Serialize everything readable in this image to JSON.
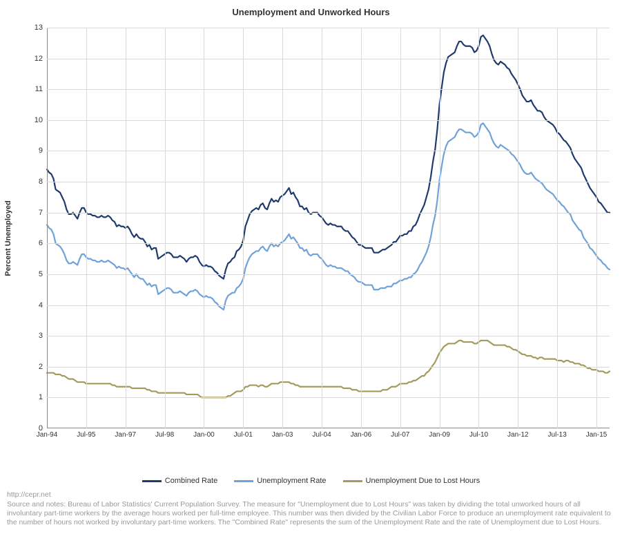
{
  "chart": {
    "type": "line",
    "title": "Unemployment and Unworked Hours",
    "title_fontsize": 13,
    "background_color": "#ffffff",
    "grid_color": "#d9d9d9",
    "axis_color": "#888888",
    "text_color": "#333333",
    "line_width": 2.2,
    "y_axis": {
      "label": "Percent Unemployed",
      "min": 0,
      "max": 13,
      "tick_step": 1,
      "ticks": [
        0,
        1,
        2,
        3,
        4,
        5,
        6,
        7,
        8,
        9,
        10,
        11,
        12,
        13
      ]
    },
    "x_axis": {
      "start": "1994-01",
      "end": "2015-07",
      "tick_labels": [
        "Jan-94",
        "Jul-95",
        "Jan-97",
        "Jul-98",
        "Jan-00",
        "Jul-01",
        "Jan-03",
        "Jul-04",
        "Jan-06",
        "Jul-07",
        "Jan-09",
        "Jul-10",
        "Jan-12",
        "Jul-13",
        "Jan-15"
      ],
      "tick_indices": [
        0,
        18,
        36,
        54,
        72,
        90,
        108,
        126,
        144,
        162,
        180,
        198,
        216,
        234,
        252
      ],
      "n_points": 259
    },
    "series": [
      {
        "name": "Combined Rate",
        "color": "#1f3a6e",
        "values": [
          8.4,
          8.3,
          8.25,
          8.1,
          7.75,
          7.7,
          7.65,
          7.5,
          7.35,
          7.1,
          6.95,
          6.95,
          7.0,
          6.9,
          6.8,
          7.0,
          7.15,
          7.15,
          7.0,
          6.95,
          6.95,
          6.9,
          6.9,
          6.85,
          6.85,
          6.9,
          6.85,
          6.85,
          6.9,
          6.85,
          6.75,
          6.7,
          6.55,
          6.6,
          6.55,
          6.55,
          6.5,
          6.55,
          6.45,
          6.3,
          6.2,
          6.3,
          6.2,
          6.15,
          6.15,
          6.05,
          5.9,
          5.95,
          5.8,
          5.85,
          5.85,
          5.5,
          5.55,
          5.6,
          5.65,
          5.7,
          5.7,
          5.65,
          5.55,
          5.55,
          5.55,
          5.6,
          5.55,
          5.5,
          5.4,
          5.5,
          5.55,
          5.55,
          5.6,
          5.55,
          5.4,
          5.3,
          5.25,
          5.3,
          5.25,
          5.25,
          5.2,
          5.1,
          5.05,
          4.95,
          4.9,
          4.85,
          5.15,
          5.35,
          5.4,
          5.5,
          5.55,
          5.75,
          5.8,
          5.9,
          6.1,
          6.55,
          6.75,
          6.95,
          7.05,
          7.1,
          7.15,
          7.1,
          7.25,
          7.3,
          7.15,
          7.1,
          7.3,
          7.45,
          7.35,
          7.4,
          7.35,
          7.5,
          7.55,
          7.6,
          7.7,
          7.8,
          7.6,
          7.65,
          7.5,
          7.4,
          7.2,
          7.2,
          7.1,
          7.15,
          7.0,
          6.95,
          7.0,
          7.0,
          7.0,
          6.9,
          6.85,
          6.75,
          6.65,
          6.6,
          6.65,
          6.6,
          6.6,
          6.55,
          6.55,
          6.55,
          6.45,
          6.4,
          6.4,
          6.3,
          6.2,
          6.15,
          6.05,
          5.95,
          5.95,
          5.9,
          5.85,
          5.85,
          5.85,
          5.85,
          5.7,
          5.7,
          5.7,
          5.75,
          5.8,
          5.8,
          5.85,
          5.9,
          5.95,
          6.05,
          6.05,
          6.15,
          6.25,
          6.25,
          6.3,
          6.3,
          6.4,
          6.4,
          6.55,
          6.6,
          6.75,
          6.95,
          7.1,
          7.25,
          7.5,
          7.75,
          8.15,
          8.65,
          9.05,
          9.7,
          10.5,
          11.05,
          11.55,
          11.85,
          12.05,
          12.1,
          12.15,
          12.2,
          12.4,
          12.55,
          12.55,
          12.45,
          12.4,
          12.4,
          12.4,
          12.35,
          12.2,
          12.25,
          12.4,
          12.7,
          12.75,
          12.65,
          12.55,
          12.4,
          12.15,
          11.95,
          11.85,
          11.8,
          11.9,
          11.85,
          11.8,
          11.7,
          11.65,
          11.5,
          11.4,
          11.3,
          11.15,
          11.0,
          10.8,
          10.7,
          10.6,
          10.6,
          10.65,
          10.5,
          10.4,
          10.3,
          10.3,
          10.25,
          10.1,
          10.0,
          9.95,
          9.9,
          9.85,
          9.75,
          9.6,
          9.55,
          9.45,
          9.35,
          9.3,
          9.2,
          9.1,
          8.9,
          8.75,
          8.65,
          8.55,
          8.45,
          8.25,
          8.1,
          7.95,
          7.8,
          7.7,
          7.6,
          7.5,
          7.35,
          7.3,
          7.2,
          7.1,
          7.0,
          7.0
        ]
      },
      {
        "name": "Unemployment Rate",
        "color": "#6fa2d8",
        "values": [
          6.6,
          6.5,
          6.45,
          6.3,
          6.0,
          5.95,
          5.9,
          5.8,
          5.65,
          5.45,
          5.35,
          5.35,
          5.4,
          5.35,
          5.3,
          5.5,
          5.65,
          5.65,
          5.55,
          5.5,
          5.5,
          5.45,
          5.45,
          5.4,
          5.4,
          5.45,
          5.4,
          5.4,
          5.45,
          5.4,
          5.35,
          5.3,
          5.2,
          5.25,
          5.2,
          5.2,
          5.15,
          5.2,
          5.1,
          5.0,
          4.9,
          5.0,
          4.9,
          4.85,
          4.85,
          4.75,
          4.65,
          4.7,
          4.6,
          4.65,
          4.65,
          4.35,
          4.4,
          4.45,
          4.5,
          4.55,
          4.55,
          4.5,
          4.4,
          4.4,
          4.4,
          4.45,
          4.4,
          4.35,
          4.3,
          4.4,
          4.45,
          4.45,
          4.5,
          4.45,
          4.35,
          4.3,
          4.25,
          4.3,
          4.25,
          4.25,
          4.2,
          4.1,
          4.05,
          3.95,
          3.9,
          3.85,
          4.15,
          4.3,
          4.35,
          4.4,
          4.4,
          4.55,
          4.6,
          4.7,
          4.85,
          5.2,
          5.4,
          5.55,
          5.65,
          5.7,
          5.75,
          5.75,
          5.85,
          5.9,
          5.8,
          5.75,
          5.9,
          6.0,
          5.9,
          5.95,
          5.9,
          6.0,
          6.05,
          6.1,
          6.2,
          6.3,
          6.15,
          6.2,
          6.1,
          6.0,
          5.85,
          5.85,
          5.75,
          5.8,
          5.65,
          5.6,
          5.65,
          5.65,
          5.65,
          5.55,
          5.5,
          5.4,
          5.3,
          5.25,
          5.3,
          5.25,
          5.25,
          5.2,
          5.2,
          5.2,
          5.15,
          5.1,
          5.1,
          5.0,
          4.95,
          4.9,
          4.8,
          4.75,
          4.75,
          4.7,
          4.65,
          4.65,
          4.65,
          4.65,
          4.5,
          4.5,
          4.5,
          4.55,
          4.55,
          4.55,
          4.6,
          4.6,
          4.6,
          4.7,
          4.7,
          4.75,
          4.8,
          4.8,
          4.85,
          4.85,
          4.9,
          4.9,
          5.0,
          5.05,
          5.15,
          5.3,
          5.4,
          5.55,
          5.7,
          5.9,
          6.2,
          6.6,
          6.9,
          7.4,
          8.05,
          8.5,
          8.9,
          9.15,
          9.3,
          9.35,
          9.4,
          9.45,
          9.6,
          9.7,
          9.7,
          9.65,
          9.6,
          9.6,
          9.6,
          9.55,
          9.45,
          9.5,
          9.6,
          9.85,
          9.9,
          9.8,
          9.7,
          9.6,
          9.4,
          9.25,
          9.15,
          9.1,
          9.2,
          9.15,
          9.1,
          9.05,
          9.0,
          8.9,
          8.85,
          8.75,
          8.65,
          8.55,
          8.4,
          8.3,
          8.25,
          8.25,
          8.3,
          8.2,
          8.1,
          8.05,
          8.0,
          7.95,
          7.85,
          7.75,
          7.7,
          7.65,
          7.6,
          7.5,
          7.4,
          7.35,
          7.25,
          7.2,
          7.1,
          7.0,
          6.95,
          6.75,
          6.65,
          6.55,
          6.45,
          6.4,
          6.2,
          6.1,
          6.0,
          5.85,
          5.8,
          5.7,
          5.6,
          5.5,
          5.45,
          5.35,
          5.3,
          5.2,
          5.15
        ]
      },
      {
        "name": "Unemployment Due to Lost Hours",
        "color": "#a39a5b",
        "values": [
          1.8,
          1.8,
          1.8,
          1.8,
          1.75,
          1.75,
          1.75,
          1.7,
          1.7,
          1.65,
          1.6,
          1.6,
          1.6,
          1.55,
          1.5,
          1.5,
          1.5,
          1.5,
          1.45,
          1.45,
          1.45,
          1.45,
          1.45,
          1.45,
          1.45,
          1.45,
          1.45,
          1.45,
          1.45,
          1.45,
          1.4,
          1.4,
          1.35,
          1.35,
          1.35,
          1.35,
          1.35,
          1.35,
          1.35,
          1.3,
          1.3,
          1.3,
          1.3,
          1.3,
          1.3,
          1.3,
          1.25,
          1.25,
          1.2,
          1.2,
          1.2,
          1.15,
          1.15,
          1.15,
          1.15,
          1.15,
          1.15,
          1.15,
          1.15,
          1.15,
          1.15,
          1.15,
          1.15,
          1.15,
          1.1,
          1.1,
          1.1,
          1.1,
          1.1,
          1.1,
          1.05,
          1.0,
          1.0,
          1.0,
          1.0,
          1.0,
          1.0,
          1.0,
          1.0,
          1.0,
          1.0,
          1.0,
          1.0,
          1.05,
          1.05,
          1.1,
          1.15,
          1.2,
          1.2,
          1.2,
          1.25,
          1.35,
          1.35,
          1.4,
          1.4,
          1.4,
          1.4,
          1.35,
          1.4,
          1.4,
          1.35,
          1.35,
          1.4,
          1.45,
          1.45,
          1.45,
          1.45,
          1.5,
          1.5,
          1.5,
          1.5,
          1.5,
          1.45,
          1.45,
          1.4,
          1.4,
          1.35,
          1.35,
          1.35,
          1.35,
          1.35,
          1.35,
          1.35,
          1.35,
          1.35,
          1.35,
          1.35,
          1.35,
          1.35,
          1.35,
          1.35,
          1.35,
          1.35,
          1.35,
          1.35,
          1.35,
          1.3,
          1.3,
          1.3,
          1.3,
          1.25,
          1.25,
          1.25,
          1.2,
          1.2,
          1.2,
          1.2,
          1.2,
          1.2,
          1.2,
          1.2,
          1.2,
          1.2,
          1.2,
          1.25,
          1.25,
          1.25,
          1.3,
          1.35,
          1.35,
          1.35,
          1.4,
          1.45,
          1.45,
          1.45,
          1.45,
          1.5,
          1.5,
          1.55,
          1.55,
          1.6,
          1.65,
          1.7,
          1.7,
          1.8,
          1.85,
          1.95,
          2.05,
          2.15,
          2.3,
          2.45,
          2.55,
          2.65,
          2.7,
          2.75,
          2.75,
          2.75,
          2.75,
          2.8,
          2.85,
          2.85,
          2.8,
          2.8,
          2.8,
          2.8,
          2.8,
          2.75,
          2.75,
          2.8,
          2.85,
          2.85,
          2.85,
          2.85,
          2.8,
          2.75,
          2.7,
          2.7,
          2.7,
          2.7,
          2.7,
          2.7,
          2.65,
          2.65,
          2.6,
          2.55,
          2.55,
          2.5,
          2.45,
          2.4,
          2.4,
          2.35,
          2.35,
          2.35,
          2.3,
          2.3,
          2.25,
          2.3,
          2.3,
          2.25,
          2.25,
          2.25,
          2.25,
          2.25,
          2.25,
          2.2,
          2.2,
          2.2,
          2.15,
          2.2,
          2.2,
          2.15,
          2.15,
          2.1,
          2.1,
          2.1,
          2.05,
          2.05,
          2.0,
          1.95,
          1.95,
          1.9,
          1.9,
          1.9,
          1.85,
          1.85,
          1.85,
          1.8,
          1.8,
          1.85
        ]
      }
    ],
    "legend": {
      "items": [
        "Combined Rate",
        "Unemployment Rate",
        "Unemployment Due to Lost Hours"
      ],
      "fontsize": 11
    }
  },
  "footer": {
    "url": "http://cepr.net",
    "source_text": "Source and notes: Bureau of Labor Statistics' Current Population Survey. The measure for \"Unemployment due to Lost Hours\" was taken by dividing the total unworked hours of all involuntary part-time workers by the average hours worked per full-time employee. This number was then divided by the Civilian Labor Force to produce an unemployment rate equivalent to the number of hours not worked by involuntary part-time workers. The \"Combined Rate\" represents the sum of the Unemployment Rate and the rate of Unemployment due to Lost Hours.",
    "fontsize": 10.5,
    "color": "#999999"
  }
}
